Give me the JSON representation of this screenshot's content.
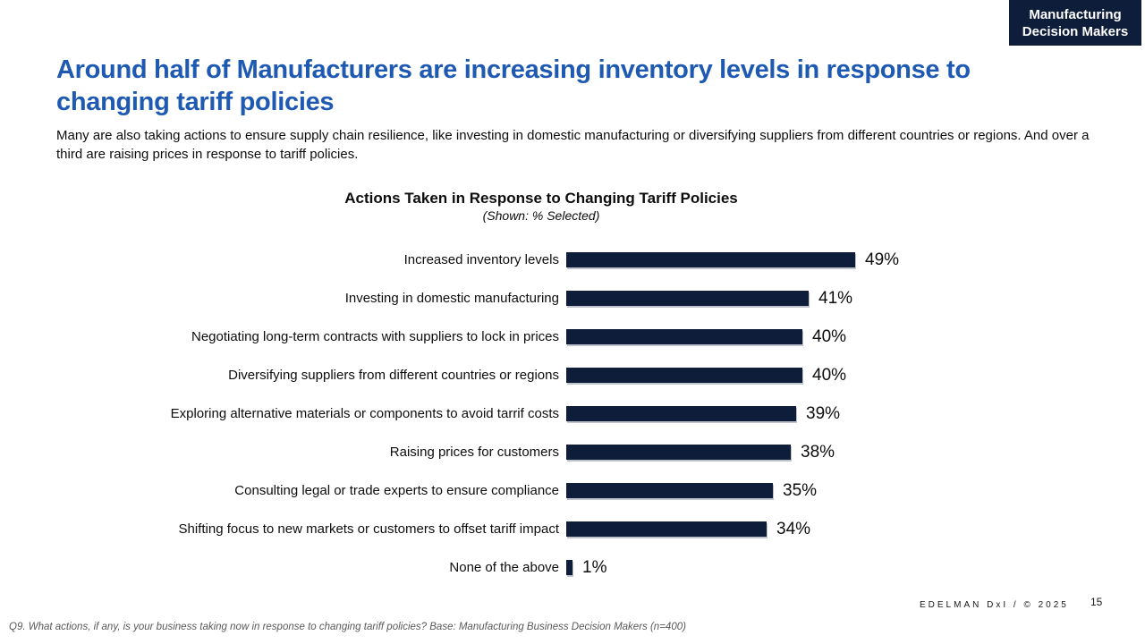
{
  "badge": {
    "line1": "Manufacturing",
    "line2": "Decision Makers"
  },
  "header": {
    "title": "Around half of Manufacturers are increasing inventory levels in response to changing tariff policies",
    "subtitle": "Many are also taking actions to ensure supply chain resilience, like investing in domestic manufacturing or diversifying suppliers from different countries or regions. And over a third are raising prices in response to tariff policies."
  },
  "chart_data": {
    "type": "bar",
    "orientation": "horizontal",
    "title": "Actions Taken in Response to Changing Tariff Policies",
    "subtitle": "(Shown: % Selected)",
    "unit": "%",
    "xlim": [
      0,
      50
    ],
    "grid": false,
    "legend": false,
    "bar_color": "#0e1d3a",
    "categories": [
      "Increased inventory levels",
      "Investing in domestic manufacturing",
      "Negotiating long-term contracts with suppliers to lock in prices",
      "Diversifying suppliers from different countries or regions",
      "Exploring alternative materials or components to avoid tarrif costs",
      "Raising prices for customers",
      "Consulting legal or trade experts to ensure compliance",
      "Shifting focus to new markets or customers to offset tariff impact",
      "None of the above"
    ],
    "values": [
      49,
      41,
      40,
      40,
      39,
      38,
      35,
      34,
      1
    ],
    "value_labels": [
      "49%",
      "41%",
      "40%",
      "40%",
      "39%",
      "38%",
      "35%",
      "34%",
      "1%"
    ]
  },
  "footer": {
    "brand": "EDELMAN DxI / © 2025",
    "page_number": "15",
    "footnote": "Q9. What actions, if any, is your business taking now in response to changing tariff policies? Base: Manufacturing Business Decision Makers  (n=400)"
  },
  "colors": {
    "accent_blue": "#1e59b2",
    "navy": "#0e1d3a",
    "footnote_gray": "#595959"
  }
}
